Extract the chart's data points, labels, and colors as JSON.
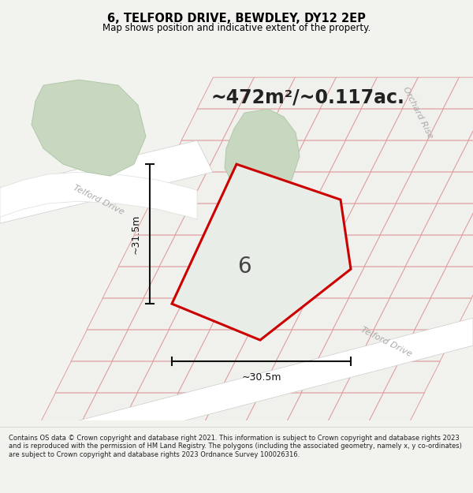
{
  "title": "6, TELFORD DRIVE, BEWDLEY, DY12 2EP",
  "subtitle": "Map shows position and indicative extent of the property.",
  "area_text": "~472m²/~0.117ac.",
  "property_number": "6",
  "dim_horizontal": "~30.5m",
  "dim_vertical": "~31.5m",
  "footer": "Contains OS data © Crown copyright and database right 2021. This information is subject to Crown copyright and database rights 2023 and is reproduced with the permission of HM Land Registry. The polygons (including the associated geometry, namely x, y co-ordinates) are subject to Crown copyright and database rights 2023 Ordnance Survey 100026316.",
  "bg_color": "#f2f2ef",
  "map_bg": "#f2f2ef",
  "property_fill": "#e8ede8",
  "property_edge": "#cc0000",
  "lot_fill": "#f0f0ed",
  "lot_edge": "#e0a0a0",
  "road_fill": "#ffffff",
  "green_fill": "#c8d8c0",
  "green_edge": "#b0c8a8",
  "title_color": "#000000",
  "text_color": "#222222",
  "road_label_color": "#aaaaaa",
  "dim_color": "#111111",
  "figsize": [
    6.0,
    6.25
  ],
  "dpi": 100
}
